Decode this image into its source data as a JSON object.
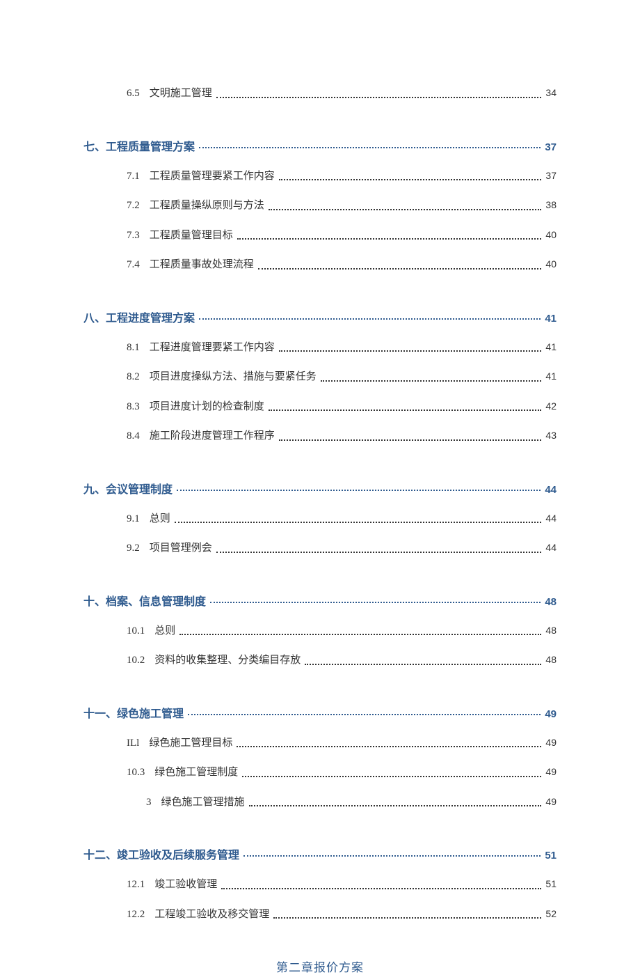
{
  "colors": {
    "background": "#ffffff",
    "heading": "#2e5a8e",
    "body_text": "#333333"
  },
  "typography": {
    "body_font": "SimSun",
    "body_size_pt": 11,
    "heading_size_pt": 12
  },
  "toc": [
    {
      "level": 2,
      "num": "6.5",
      "text": "文明施工管理",
      "page": "34"
    },
    {
      "level": 1,
      "num": "",
      "text": "七、工程质量管理方案",
      "page": "37"
    },
    {
      "level": 2,
      "num": "7.1",
      "text": "工程质量管理要紧工作内容",
      "page": "37"
    },
    {
      "level": 2,
      "num": "7.2",
      "text": "工程质量操纵原则与方法",
      "page": "38"
    },
    {
      "level": 2,
      "num": "7.3",
      "text": "工程质量管理目标",
      "page": "40"
    },
    {
      "level": 2,
      "num": "7.4",
      "text": "工程质量事故处理流程",
      "page": "40"
    },
    {
      "level": 1,
      "num": "",
      "text": "八、工程进度管理方案",
      "page": "41"
    },
    {
      "level": 2,
      "num": "8.1",
      "text": "工程进度管理要紧工作内容",
      "page": "41"
    },
    {
      "level": 2,
      "num": "8.2",
      "text": "项目进度操纵方法、措施与要紧任务",
      "page": "41"
    },
    {
      "level": 2,
      "num": "8.3",
      "text": "项目进度计划的检查制度",
      "page": "42"
    },
    {
      "level": 2,
      "num": "8.4",
      "text": "施工阶段进度管理工作程序",
      "page": "43"
    },
    {
      "level": 1,
      "num": "",
      "text": "九、会议管理制度",
      "page": "44"
    },
    {
      "level": 2,
      "num": "9.1",
      "text": "总则",
      "page": "44"
    },
    {
      "level": 2,
      "num": "9.2",
      "text": "项目管理例会",
      "page": "44"
    },
    {
      "level": 1,
      "num": "",
      "text": "十、档案、信息管理制度",
      "page": "48"
    },
    {
      "level": 2,
      "num": "10.1",
      "text": "总则",
      "page": "48"
    },
    {
      "level": 2,
      "num": "10.2",
      "text": "资料的收集整理、分类编目存放",
      "page": "48"
    },
    {
      "level": 1,
      "num": "",
      "text": "十一、绿色施工管理",
      "page": "49"
    },
    {
      "level": 2,
      "num": "ILl",
      "text": "绿色施工管理目标",
      "page": "49"
    },
    {
      "level": 2,
      "num": "10.3",
      "text": "绿色施工管理制度",
      "page": "49"
    },
    {
      "level": 3,
      "num": "3",
      "text": "绿色施工管理措施",
      "page": "49"
    },
    {
      "level": 1,
      "num": "",
      "text": "十二、竣工验收及后续服务管理",
      "page": "51"
    },
    {
      "level": 2,
      "num": "12.1",
      "text": "竣工验收管理",
      "page": "51"
    },
    {
      "level": 2,
      "num": "12.2",
      "text": "工程竣工验收及移交管理",
      "page": "52"
    }
  ],
  "chapter_title": "第二章报价方案"
}
